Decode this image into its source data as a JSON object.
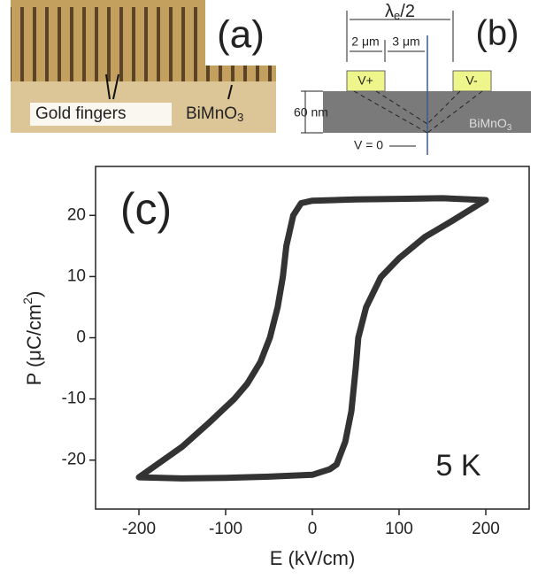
{
  "chart_data": {
    "type": "line",
    "annotations": [
      "(c)",
      "5 K"
    ],
    "x_label": "E (kV/cm)",
    "y_label": [
      "P (μC/cm",
      "2",
      ")"
    ],
    "x": [
      200,
      150,
      100,
      50,
      0,
      -13,
      -22,
      -30,
      -34,
      -40,
      -49,
      -60,
      -75,
      -90,
      -120,
      -150,
      -200,
      -150,
      -100,
      -50,
      0,
      20,
      28,
      38,
      45,
      50,
      53,
      62,
      79,
      100,
      130,
      160,
      200
    ],
    "values": [
      22.5,
      22.8,
      22.7,
      22.6,
      22.4,
      22,
      20,
      15,
      10,
      5,
      0,
      -4,
      -7.5,
      -10,
      -14,
      -17.8,
      -22.8,
      -23,
      -22.9,
      -22.7,
      -22.4,
      -21.5,
      -20.7,
      -17,
      -12,
      -5,
      0,
      5,
      9.9,
      13,
      16.5,
      19,
      22.5
    ],
    "color": "#333333",
    "xlim": [
      -250,
      250
    ],
    "xticks": [
      -200,
      -100,
      0,
      100,
      200
    ],
    "ylim": [
      -28,
      28
    ],
    "yticks": [
      -20,
      -10,
      0,
      10,
      20
    ],
    "grid": false
  },
  "panel_a": {
    "label": "(a)",
    "fingers": "Gold fingers",
    "material": [
      "BiMnO",
      "3"
    ]
  },
  "panel_b": {
    "label": "(b)",
    "wavelength": [
      "λ",
      "e",
      "/2"
    ],
    "gap1": "2 μm",
    "gap2": "3 μm",
    "electrode1": "V+",
    "electrode2": "V-",
    "thickness": "60 nm",
    "material": [
      "BiMnO",
      "3"
    ],
    "ground": "V = 0"
  }
}
